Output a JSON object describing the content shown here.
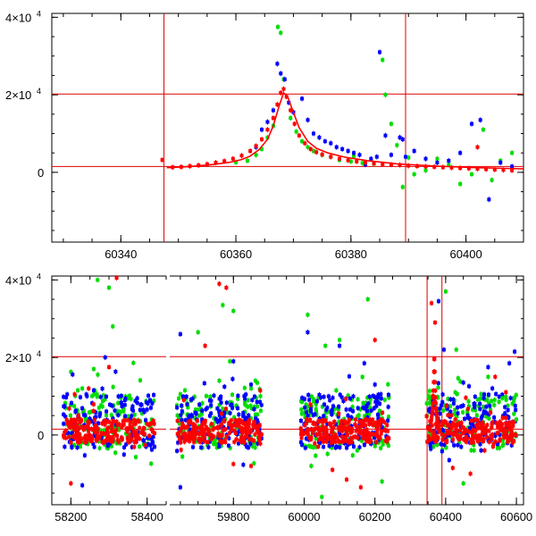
{
  "chart_data": [
    {
      "type": "scatter",
      "panel": "top",
      "xlim": [
        60328,
        60410
      ],
      "ylim": [
        -18000,
        41000
      ],
      "xticks": [
        60340,
        60360,
        60380,
        60400
      ],
      "yticks": [
        {
          "value": 0,
          "label": "0",
          "exp": ""
        },
        {
          "value": 20000,
          "label": "2×10",
          "exp": "4"
        },
        {
          "value": 40000,
          "label": "4×10",
          "exp": "4"
        }
      ],
      "grid": false,
      "reference_lines": {
        "horizontal": [
          20200,
          1500
        ],
        "vertical": [
          60347.5,
          60389.5
        ]
      },
      "series": [
        {
          "color": "#ff0000",
          "points": [
            [
              60347.2,
              3200
            ],
            [
              60349,
              1300
            ],
            [
              60350.5,
              1400
            ],
            [
              60352,
              1600
            ],
            [
              60353.5,
              1800
            ],
            [
              60355,
              2100
            ],
            [
              60356.5,
              2500
            ],
            [
              60358,
              2900
            ],
            [
              60359.5,
              3500
            ],
            [
              60361,
              4300
            ],
            [
              60362.5,
              5500
            ],
            [
              60363.5,
              6800
            ],
            [
              60364.5,
              8500
            ],
            [
              60365.5,
              11000
            ],
            [
              60366.5,
              14000
            ],
            [
              60367.2,
              17500
            ],
            [
              60367.8,
              20500
            ],
            [
              60368.3,
              21500
            ],
            [
              60368.8,
              19500
            ],
            [
              60369.5,
              16000
            ],
            [
              60370.2,
              12500
            ],
            [
              60371,
              9500
            ],
            [
              60372,
              7500
            ],
            [
              60373,
              6000
            ],
            [
              60374,
              5200
            ],
            [
              60375,
              4600
            ],
            [
              60376.5,
              4000
            ],
            [
              60378,
              3500
            ],
            [
              60379.5,
              3100
            ],
            [
              60381,
              2800
            ],
            [
              60382.5,
              2500
            ],
            [
              60384,
              2300
            ],
            [
              60385.5,
              2100
            ],
            [
              60387,
              2000
            ],
            [
              60388.5,
              1900
            ],
            [
              60390,
              1700
            ],
            [
              60391.5,
              1600
            ],
            [
              60393,
              1500
            ],
            [
              60394.5,
              1400
            ],
            [
              60396,
              1300
            ],
            [
              60397.5,
              1200
            ],
            [
              60399,
              1100
            ],
            [
              60400.5,
              1000
            ],
            [
              60402,
              900
            ],
            [
              60403.5,
              800
            ],
            [
              60405,
              700
            ],
            [
              60406.5,
              600
            ],
            [
              60408,
              500
            ],
            [
              60402,
              6500
            ]
          ]
        },
        {
          "color": "#00dd00",
          "points": [
            [
              60363.5,
              4500
            ],
            [
              60364.5,
              6000
            ],
            [
              60365.5,
              9000
            ],
            [
              60366.5,
              12000
            ],
            [
              60367.3,
              37500
            ],
            [
              60367.8,
              36000
            ],
            [
              60368.3,
              24000
            ],
            [
              60369.5,
              14000
            ],
            [
              60370.5,
              10500
            ],
            [
              60371.5,
              8000
            ],
            [
              60372.5,
              6500
            ],
            [
              60373.5,
              5500
            ],
            [
              60375,
              4500
            ],
            [
              60376.5,
              4000
            ],
            [
              60378,
              3200
            ],
            [
              60380,
              2800
            ],
            [
              60382,
              2400
            ],
            [
              60384,
              2200
            ],
            [
              60385.5,
              29000
            ],
            [
              60386,
              20000
            ],
            [
              60387,
              12500
            ],
            [
              60388,
              7000
            ],
            [
              60389,
              -3800
            ],
            [
              60391,
              -500
            ],
            [
              60393,
              500
            ],
            [
              60395,
              3500
            ],
            [
              60397,
              2000
            ],
            [
              60399,
              -3000
            ],
            [
              60401,
              -500
            ],
            [
              60403,
              11000
            ],
            [
              60404.5,
              -2000
            ],
            [
              60406,
              3000
            ],
            [
              60408,
              5000
            ],
            [
              60362,
              3000
            ],
            [
              60360,
              2600
            ],
            [
              60380.5,
              4200
            ],
            [
              60390,
              3800
            ]
          ]
        },
        {
          "color": "#0000ff",
          "points": [
            [
              60363.5,
              6500
            ],
            [
              60364.5,
              11000
            ],
            [
              60365.5,
              13000
            ],
            [
              60366.5,
              16000
            ],
            [
              60367.2,
              28000
            ],
            [
              60367.8,
              25500
            ],
            [
              60368.5,
              24000
            ],
            [
              60369.2,
              18000
            ],
            [
              60370,
              15500
            ],
            [
              60371.5,
              19000
            ],
            [
              60372.5,
              13500
            ],
            [
              60373.5,
              10000
            ],
            [
              60374.5,
              9000
            ],
            [
              60375.5,
              8000
            ],
            [
              60376.5,
              7500
            ],
            [
              60377.5,
              6500
            ],
            [
              60378.5,
              6000
            ],
            [
              60379.5,
              5500
            ],
            [
              60380.5,
              5000
            ],
            [
              60381.5,
              4500
            ],
            [
              60382.5,
              2000
            ],
            [
              60383.5,
              3500
            ],
            [
              60384.5,
              4000
            ],
            [
              60385,
              31000
            ],
            [
              60386,
              9500
            ],
            [
              60387,
              4500
            ],
            [
              60388.5,
              9000
            ],
            [
              60389.5,
              4000
            ],
            [
              60391,
              5500
            ],
            [
              60393,
              3500
            ],
            [
              60395,
              2500
            ],
            [
              60397,
              3000
            ],
            [
              60399,
              5000
            ],
            [
              60401,
              12500
            ],
            [
              60402.5,
              13500
            ],
            [
              60404,
              -7000
            ],
            [
              60406,
              2500
            ],
            [
              60408,
              1500
            ],
            [
              60389,
              8500
            ]
          ]
        }
      ],
      "fit_curve": {
        "color": "#ff0000",
        "x": [
          60348,
          60352,
          60356,
          60359,
          60361,
          60362.5,
          60364,
          60365.5,
          60366.5,
          60367.5,
          60368.3,
          60369,
          60370,
          60371,
          60372.5,
          60374,
          60376,
          60379,
          60383,
          60388,
          60395,
          60402,
          60410
        ],
        "y": [
          1200,
          1500,
          2000,
          2600,
          3300,
          4200,
          5800,
          8500,
          12000,
          17000,
          20500,
          19500,
          15500,
          11500,
          8000,
          6200,
          5000,
          3900,
          3000,
          2200,
          1600,
          1200,
          900
        ]
      }
    },
    {
      "type": "scatter",
      "panel": "bottom",
      "broken_axis": true,
      "segments": [
        {
          "xlim": [
            58150,
            58450
          ],
          "xticks": [
            58200,
            58400
          ]
        },
        {
          "xlim": [
            59620,
            60620
          ],
          "xticks": [
            59800,
            60000,
            60200,
            60400,
            60600
          ]
        }
      ],
      "ylim": [
        -18000,
        41000
      ],
      "yticks": [
        {
          "value": 0,
          "label": "0",
          "exp": ""
        },
        {
          "value": 20000,
          "label": "2×10",
          "exp": "4"
        },
        {
          "value": 40000,
          "label": "4×10",
          "exp": "4"
        }
      ],
      "grid": false,
      "reference_lines": {
        "horizontal": [
          20200,
          1500
        ],
        "vertical": [
          60347.5,
          60389.5
        ]
      },
      "seasons": [
        {
          "x0": 58180,
          "x1": 58420,
          "seg": 0
        },
        {
          "x0": 59640,
          "x1": 59880,
          "seg": 1
        },
        {
          "x0": 59990,
          "x1": 60240,
          "seg": 1
        },
        {
          "x0": 60345,
          "x1": 60600,
          "seg": 1
        }
      ],
      "outliers": [
        {
          "color": "#00dd00",
          "points": [
            [
              58270,
              40000
            ],
            [
              58300,
              38000
            ],
            [
              58310,
              28000
            ],
            [
              58230,
              12000
            ],
            [
              58260,
              17000
            ],
            [
              58330,
              6000
            ],
            [
              58380,
              -3000
            ],
            [
              59770,
              33500
            ],
            [
              59800,
              32000
            ],
            [
              59760,
              14000
            ],
            [
              59790,
              19000
            ],
            [
              59850,
              12000
            ],
            [
              59700,
              26500
            ],
            [
              60010,
              31000
            ],
            [
              60060,
              23000
            ],
            [
              60100,
              24500
            ],
            [
              60180,
              35000
            ],
            [
              60220,
              -12000
            ],
            [
              60150,
              -4000
            ],
            [
              60020,
              -8000
            ],
            [
              60050,
              -16000
            ],
            [
              60400,
              37000
            ],
            [
              60430,
              22000
            ],
            [
              60480,
              -4000
            ],
            [
              60520,
              15000
            ],
            [
              60560,
              9500
            ],
            [
              60600,
              4000
            ],
            [
              60450,
              -12500
            ]
          ]
        },
        {
          "color": "#0000ff",
          "points": [
            [
              58290,
              20000
            ],
            [
              58260,
              11500
            ],
            [
              58230,
              -13000
            ],
            [
              59650,
              -13500
            ],
            [
              59650,
              26000
            ],
            [
              59800,
              19000
            ],
            [
              59850,
              13000
            ],
            [
              60010,
              26500
            ],
            [
              60100,
              23000
            ],
            [
              60170,
              18500
            ],
            [
              60200,
              13000
            ],
            [
              60380,
              34500
            ],
            [
              60395,
              22000
            ],
            [
              60410,
              -6500
            ],
            [
              60450,
              13500
            ],
            [
              60520,
              17500
            ],
            [
              60580,
              18500
            ],
            [
              60595,
              21500
            ],
            [
              60500,
              -4000
            ]
          ]
        },
        {
          "color": "#ff0000",
          "points": [
            [
              58320,
              40500
            ],
            [
              58300,
              17500
            ],
            [
              58200,
              -12500
            ],
            [
              59760,
              39000
            ],
            [
              59780,
              38000
            ],
            [
              59720,
              23000
            ],
            [
              59800,
              -7500
            ],
            [
              59850,
              -8000
            ],
            [
              60040,
              -3000
            ],
            [
              60080,
              -9000
            ],
            [
              60120,
              -11500
            ],
            [
              60160,
              -13500
            ],
            [
              60200,
              24500
            ],
            [
              60230,
              -1500
            ],
            [
              60360,
              34000
            ],
            [
              60370,
              29000
            ],
            [
              60420,
              -8500
            ],
            [
              60470,
              -10000
            ],
            [
              60510,
              -4000
            ],
            [
              60540,
              15000
            ]
          ]
        }
      ]
    }
  ]
}
